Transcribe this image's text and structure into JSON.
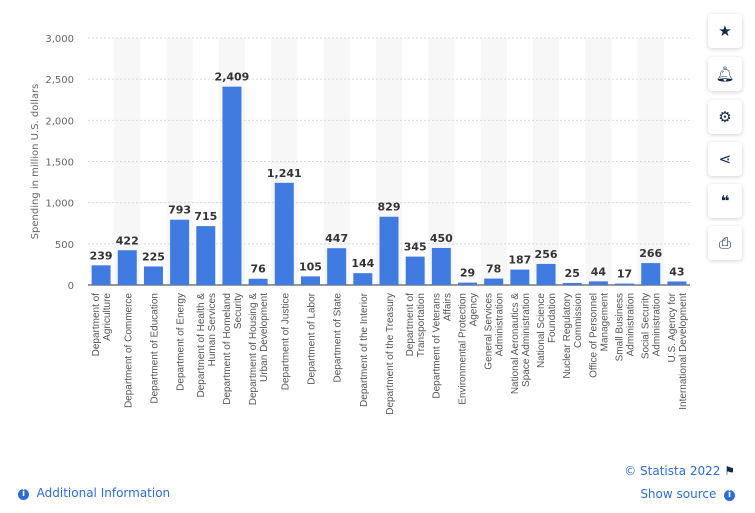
{
  "chart_data": {
    "type": "bar",
    "ylabel": "Spending in million U.S. dollars",
    "ylim": [
      0,
      3000
    ],
    "yticks": [
      0,
      500,
      1000,
      1500,
      2000,
      2500,
      3000
    ],
    "ytick_labels": [
      "0",
      "500",
      "1,000",
      "1,500",
      "2,000",
      "2,500",
      "3,000"
    ],
    "grid": true,
    "bar_color": "#3f7be0",
    "categories": [
      [
        "Department of",
        "Agriculture"
      ],
      [
        "Department of Commerce"
      ],
      [
        "Department of Education"
      ],
      [
        "Department of Energy"
      ],
      [
        "Department of Health &",
        "Human Services"
      ],
      [
        "Department of Homeland",
        "Security"
      ],
      [
        "Department of Housing &",
        "Urban Development"
      ],
      [
        "Department of Justice"
      ],
      [
        "Department of Labor"
      ],
      [
        "Department of State"
      ],
      [
        "Department of the Interior"
      ],
      [
        "Department of the Treasury"
      ],
      [
        "Department of",
        "Transportation"
      ],
      [
        "Department of Veterans",
        "Affairs"
      ],
      [
        "Environmental Protection",
        "Agency"
      ],
      [
        "General Services",
        "Administration"
      ],
      [
        "National Aeronautics &",
        "Space Administration"
      ],
      [
        "National Science",
        "Foundation"
      ],
      [
        "Nuclear Regulatory",
        "Commission"
      ],
      [
        "Office of Personnel",
        "Management"
      ],
      [
        "Small Business",
        "Administration"
      ],
      [
        "Social Security",
        "Administration"
      ],
      [
        "U.S. Agency for",
        "International Development"
      ]
    ],
    "values": [
      239,
      422,
      225,
      793,
      715,
      2409,
      76,
      1241,
      105,
      447,
      144,
      829,
      345,
      450,
      29,
      78,
      187,
      256,
      25,
      44,
      17,
      266,
      43
    ],
    "value_labels": [
      "239",
      "422",
      "225",
      "793",
      "715",
      "2,409",
      "76",
      "1,241",
      "105",
      "447",
      "144",
      "829",
      "345",
      "450",
      "29",
      "78",
      "187",
      "256",
      "25",
      "44",
      "17",
      "266",
      "43"
    ]
  },
  "sidebar": {
    "icons": [
      "star-icon",
      "bell-icon",
      "gear-icon",
      "share-icon",
      "quote-icon",
      "print-icon"
    ]
  },
  "footer": {
    "copyright": "© Statista 2022",
    "additional_info": "Additional Information",
    "show_source": "Show source"
  }
}
